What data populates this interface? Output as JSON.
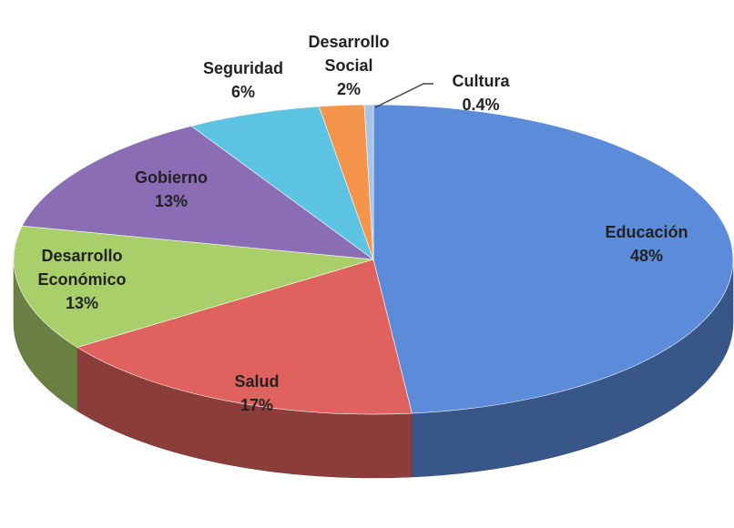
{
  "chart_data": {
    "type": "pie",
    "categories": [
      "Educación",
      "Salud",
      "Desarrollo Económico",
      "Gobierno",
      "Seguridad",
      "Desarrollo Social",
      "Cultura"
    ],
    "values": [
      48,
      17,
      13,
      13,
      6,
      2,
      0.4
    ],
    "value_labels": [
      "48%",
      "17%",
      "13%",
      "13%",
      "6%",
      "2%",
      "0.4%"
    ],
    "colors": [
      "#5b8bd9",
      "#e0625e",
      "#a9cf6a",
      "#8a6db5",
      "#5cc3e3",
      "#f5954b",
      "#a8c4e8"
    ]
  }
}
